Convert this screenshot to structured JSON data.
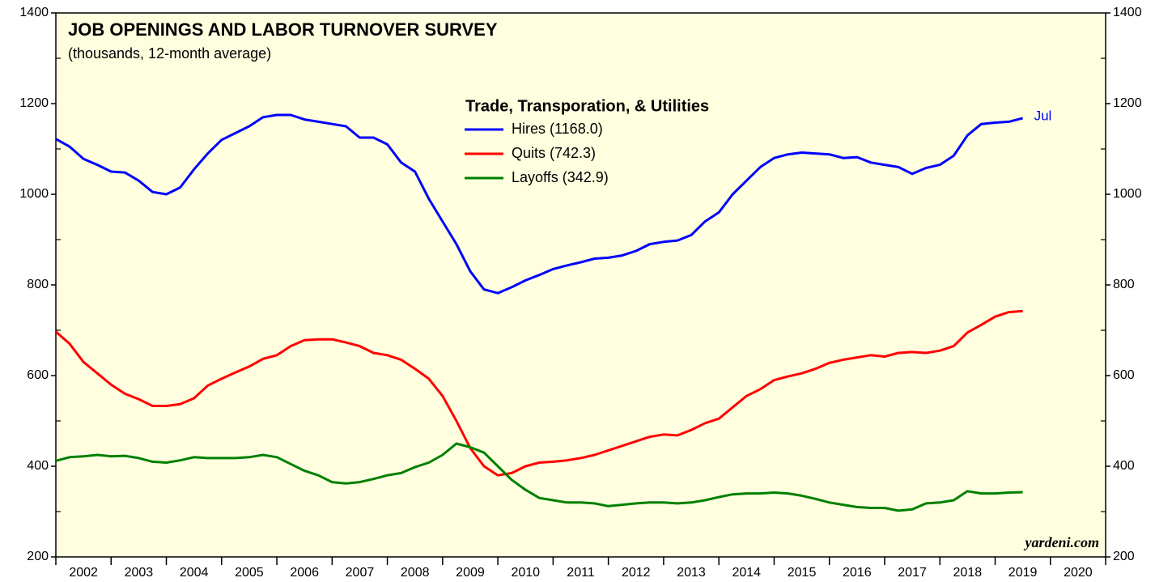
{
  "chart_data": {
    "type": "line",
    "title": "JOB OPENINGS AND LABOR TURNOVER SURVEY",
    "subtitle": "(thousands, 12-month average)",
    "legend_title": "Trade, Transporation, & Utilities",
    "annotation": "Jul",
    "source": "yardeni.com",
    "x": [
      2002,
      2002.25,
      2002.5,
      2002.75,
      2003,
      2003.25,
      2003.5,
      2003.75,
      2004,
      2004.25,
      2004.5,
      2004.75,
      2005,
      2005.25,
      2005.5,
      2005.75,
      2006,
      2006.25,
      2006.5,
      2006.75,
      2007,
      2007.25,
      2007.5,
      2007.75,
      2008,
      2008.25,
      2008.5,
      2008.75,
      2009,
      2009.25,
      2009.5,
      2009.75,
      2010,
      2010.25,
      2010.5,
      2010.75,
      2011,
      2011.25,
      2011.5,
      2011.75,
      2012,
      2012.25,
      2012.5,
      2012.75,
      2013,
      2013.25,
      2013.5,
      2013.75,
      2014,
      2014.25,
      2014.5,
      2014.75,
      2015,
      2015.25,
      2015.5,
      2015.75,
      2016,
      2016.25,
      2016.5,
      2016.75,
      2017,
      2017.25,
      2017.5,
      2017.75,
      2018,
      2018.25,
      2018.5,
      2018.75,
      2019,
      2019.25,
      2019.5
    ],
    "series": [
      {
        "name": "Hires (1168.0)",
        "color": "#0000ff",
        "values": [
          1122,
          1105,
          1078,
          1065,
          1050,
          1048,
          1030,
          1005,
          1000,
          1015,
          1055,
          1090,
          1120,
          1135,
          1150,
          1170,
          1175,
          1175,
          1165,
          1160,
          1155,
          1150,
          1125,
          1125,
          1110,
          1070,
          1050,
          990,
          940,
          890,
          830,
          790,
          782,
          795,
          810,
          822,
          835,
          843,
          850,
          858,
          860,
          865,
          875,
          890,
          895,
          898,
          910,
          940,
          960,
          1000,
          1030,
          1060,
          1080,
          1088,
          1092,
          1090,
          1088,
          1080,
          1082,
          1070,
          1065,
          1060,
          1045,
          1058,
          1065,
          1085,
          1130,
          1155,
          1158,
          1160,
          1168
        ]
      },
      {
        "name": "Quits (742.3)",
        "color": "#ff0000",
        "values": [
          697,
          670,
          630,
          605,
          580,
          560,
          548,
          533,
          533,
          537,
          550,
          578,
          593,
          607,
          620,
          637,
          645,
          665,
          678,
          680,
          680,
          673,
          665,
          650,
          645,
          635,
          615,
          593,
          555,
          500,
          440,
          400,
          380,
          385,
          400,
          408,
          410,
          413,
          418,
          425,
          435,
          445,
          455,
          465,
          470,
          468,
          480,
          495,
          505,
          530,
          555,
          570,
          590,
          598,
          605,
          615,
          628,
          635,
          640,
          645,
          642,
          650,
          652,
          650,
          655,
          665,
          695,
          712,
          730,
          740,
          742.3
        ]
      },
      {
        "name": "Layoffs (342.9)",
        "color": "#008000",
        "values": [
          412,
          420,
          422,
          425,
          422,
          423,
          418,
          410,
          408,
          413,
          420,
          418,
          418,
          418,
          420,
          425,
          420,
          405,
          390,
          380,
          365,
          362,
          365,
          372,
          380,
          385,
          398,
          408,
          425,
          450,
          442,
          430,
          400,
          370,
          348,
          330,
          325,
          320,
          320,
          318,
          312,
          315,
          318,
          320,
          320,
          318,
          320,
          325,
          332,
          338,
          340,
          340,
          342,
          340,
          335,
          328,
          320,
          315,
          310,
          308,
          308,
          302,
          305,
          318,
          320,
          325,
          345,
          340,
          340,
          342,
          342.9
        ]
      }
    ],
    "xlim": [
      2002,
      2021
    ],
    "xticks": [
      2002,
      2003,
      2004,
      2005,
      2006,
      2007,
      2008,
      2009,
      2010,
      2011,
      2012,
      2013,
      2014,
      2015,
      2016,
      2017,
      2018,
      2019,
      2020,
      2021
    ],
    "x_tick_labels": [
      "2002",
      "2003",
      "2004",
      "2005",
      "2006",
      "2007",
      "2008",
      "2009",
      "2010",
      "2011",
      "2012",
      "2013",
      "2014",
      "2015",
      "2016",
      "2017",
      "2018",
      "2019",
      "2020"
    ],
    "ylim": [
      200,
      1400
    ],
    "yticks": [
      200,
      400,
      600,
      800,
      1000,
      1200,
      1400
    ],
    "yticks_minor": [
      300,
      500,
      700,
      900,
      1100,
      1300
    ],
    "background": "#ffffe0"
  }
}
